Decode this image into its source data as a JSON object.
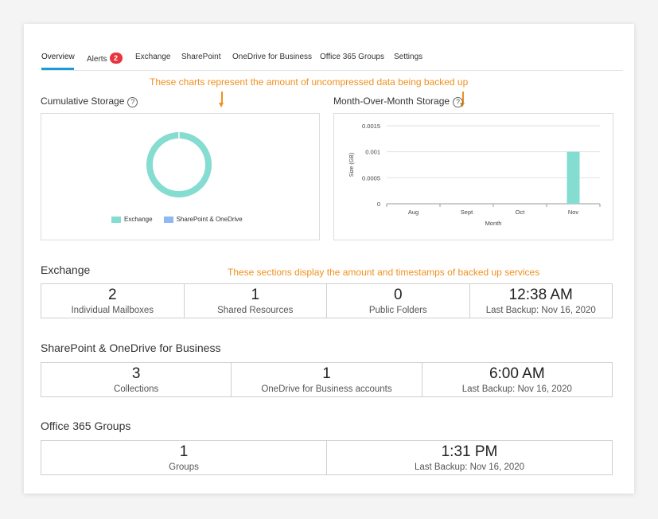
{
  "tabs": [
    {
      "label": "Overview"
    },
    {
      "label": "Alerts",
      "badge": "2"
    },
    {
      "label": "Exchange"
    },
    {
      "label": "SharePoint"
    },
    {
      "label": "OneDrive for Business"
    },
    {
      "label": "Office 365 Groups"
    },
    {
      "label": "Settings"
    }
  ],
  "annotations": {
    "charts": "These charts represent the amount of uncompressed data being backed up",
    "sections": "These sections display the amount and timestamps of backed up services"
  },
  "cumulative": {
    "title": "Cumulative Storage",
    "legend": [
      "Exchange",
      "SharePoint & OneDrive"
    ]
  },
  "mom": {
    "title": "Month-Over-Month Storage"
  },
  "colors": {
    "exchange": "#85dcd0",
    "sharepoint": "#8fb8f5",
    "accent": "#1a9cd8",
    "annotation": "#f0901e",
    "badge": "#e8343f"
  },
  "icons": {
    "help": "question-circle-icon"
  },
  "chart_data": [
    {
      "type": "pie",
      "title": "Cumulative Storage",
      "labels": [
        "Exchange",
        "SharePoint & OneDrive"
      ],
      "values": [
        1,
        0
      ],
      "donut": true,
      "legend": "bottom"
    },
    {
      "type": "bar",
      "title": "Month-Over-Month Storage",
      "xlabel": "Month",
      "ylabel": "Size (GB)",
      "categories": [
        "Aug",
        "Sept",
        "Oct",
        "Nov"
      ],
      "values": [
        0,
        0,
        0,
        0.001
      ],
      "yticks": [
        "0.0015",
        "0.001",
        "0.0005",
        "0"
      ],
      "ylim": [
        0,
        0.0015
      ],
      "grid": true
    }
  ],
  "exchange": {
    "title": "Exchange",
    "stats": [
      {
        "value": "2",
        "label": "Individual Mailboxes"
      },
      {
        "value": "1",
        "label": "Shared Resources"
      },
      {
        "value": "0",
        "label": "Public Folders"
      },
      {
        "value": "12:38 AM",
        "label": "Last Backup: Nov 16, 2020"
      }
    ]
  },
  "sharepoint": {
    "title": "SharePoint & OneDrive for Business",
    "stats": [
      {
        "value": "3",
        "label": "Collections"
      },
      {
        "value": "1",
        "label": "OneDrive for Business accounts"
      },
      {
        "value": "6:00 AM",
        "label": "Last Backup: Nov 16, 2020"
      }
    ]
  },
  "groups": {
    "title": "Office 365 Groups",
    "stats": [
      {
        "value": "1",
        "label": "Groups"
      },
      {
        "value": "1:31 PM",
        "label": "Last Backup: Nov 16, 2020"
      }
    ]
  }
}
